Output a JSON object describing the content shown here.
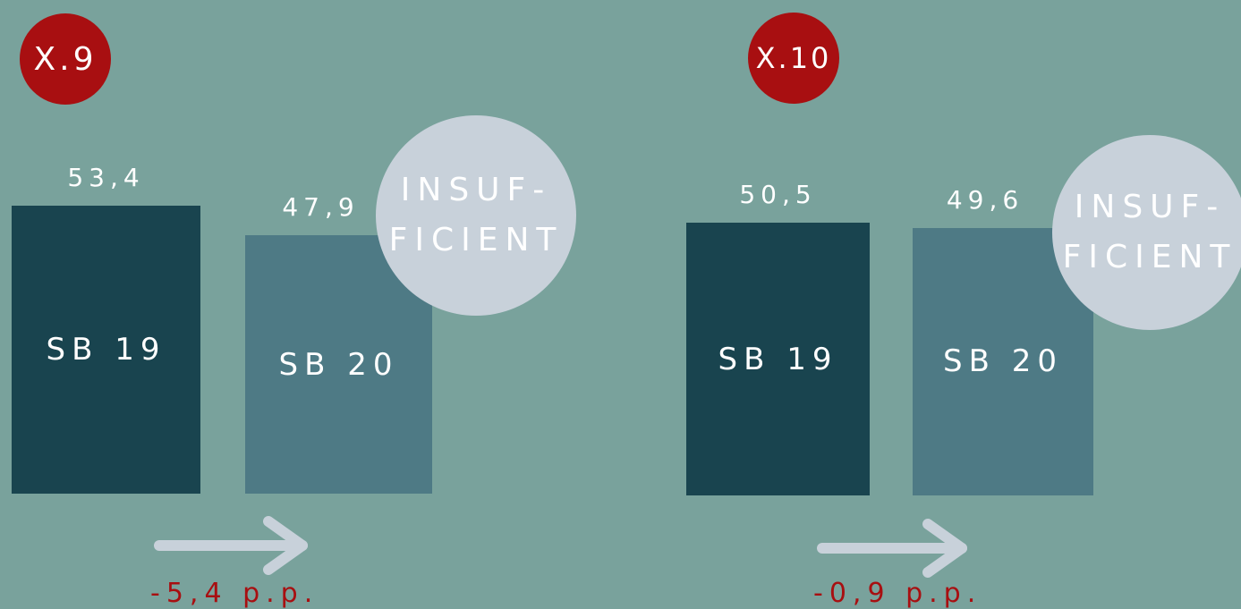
{
  "colors": {
    "background": "#79a29c",
    "sb19_bar": "#19444f",
    "sb20_bar": "#4e7a85",
    "badge": "#a80f11",
    "verdict_circle": "#c8d1da",
    "arrow": "#c8d1da",
    "delta_text": "#a80f11"
  },
  "chart_data": [
    {
      "type": "bar",
      "badge": "X.9",
      "categories": [
        "SB 19",
        "SB 20"
      ],
      "values": [
        53.4,
        47.9
      ],
      "value_labels": [
        "53,4",
        "47,9"
      ],
      "verdict": [
        "INSUF-",
        "FICIENT"
      ],
      "delta": "-5,4 p.p."
    },
    {
      "type": "bar",
      "badge": "X.10",
      "categories": [
        "SB 19",
        "SB 20"
      ],
      "values": [
        50.5,
        49.6
      ],
      "value_labels": [
        "50,5",
        "49,6"
      ],
      "verdict": [
        "INSUF-",
        "FICIENT"
      ],
      "delta": "-0,9 p.p."
    }
  ]
}
